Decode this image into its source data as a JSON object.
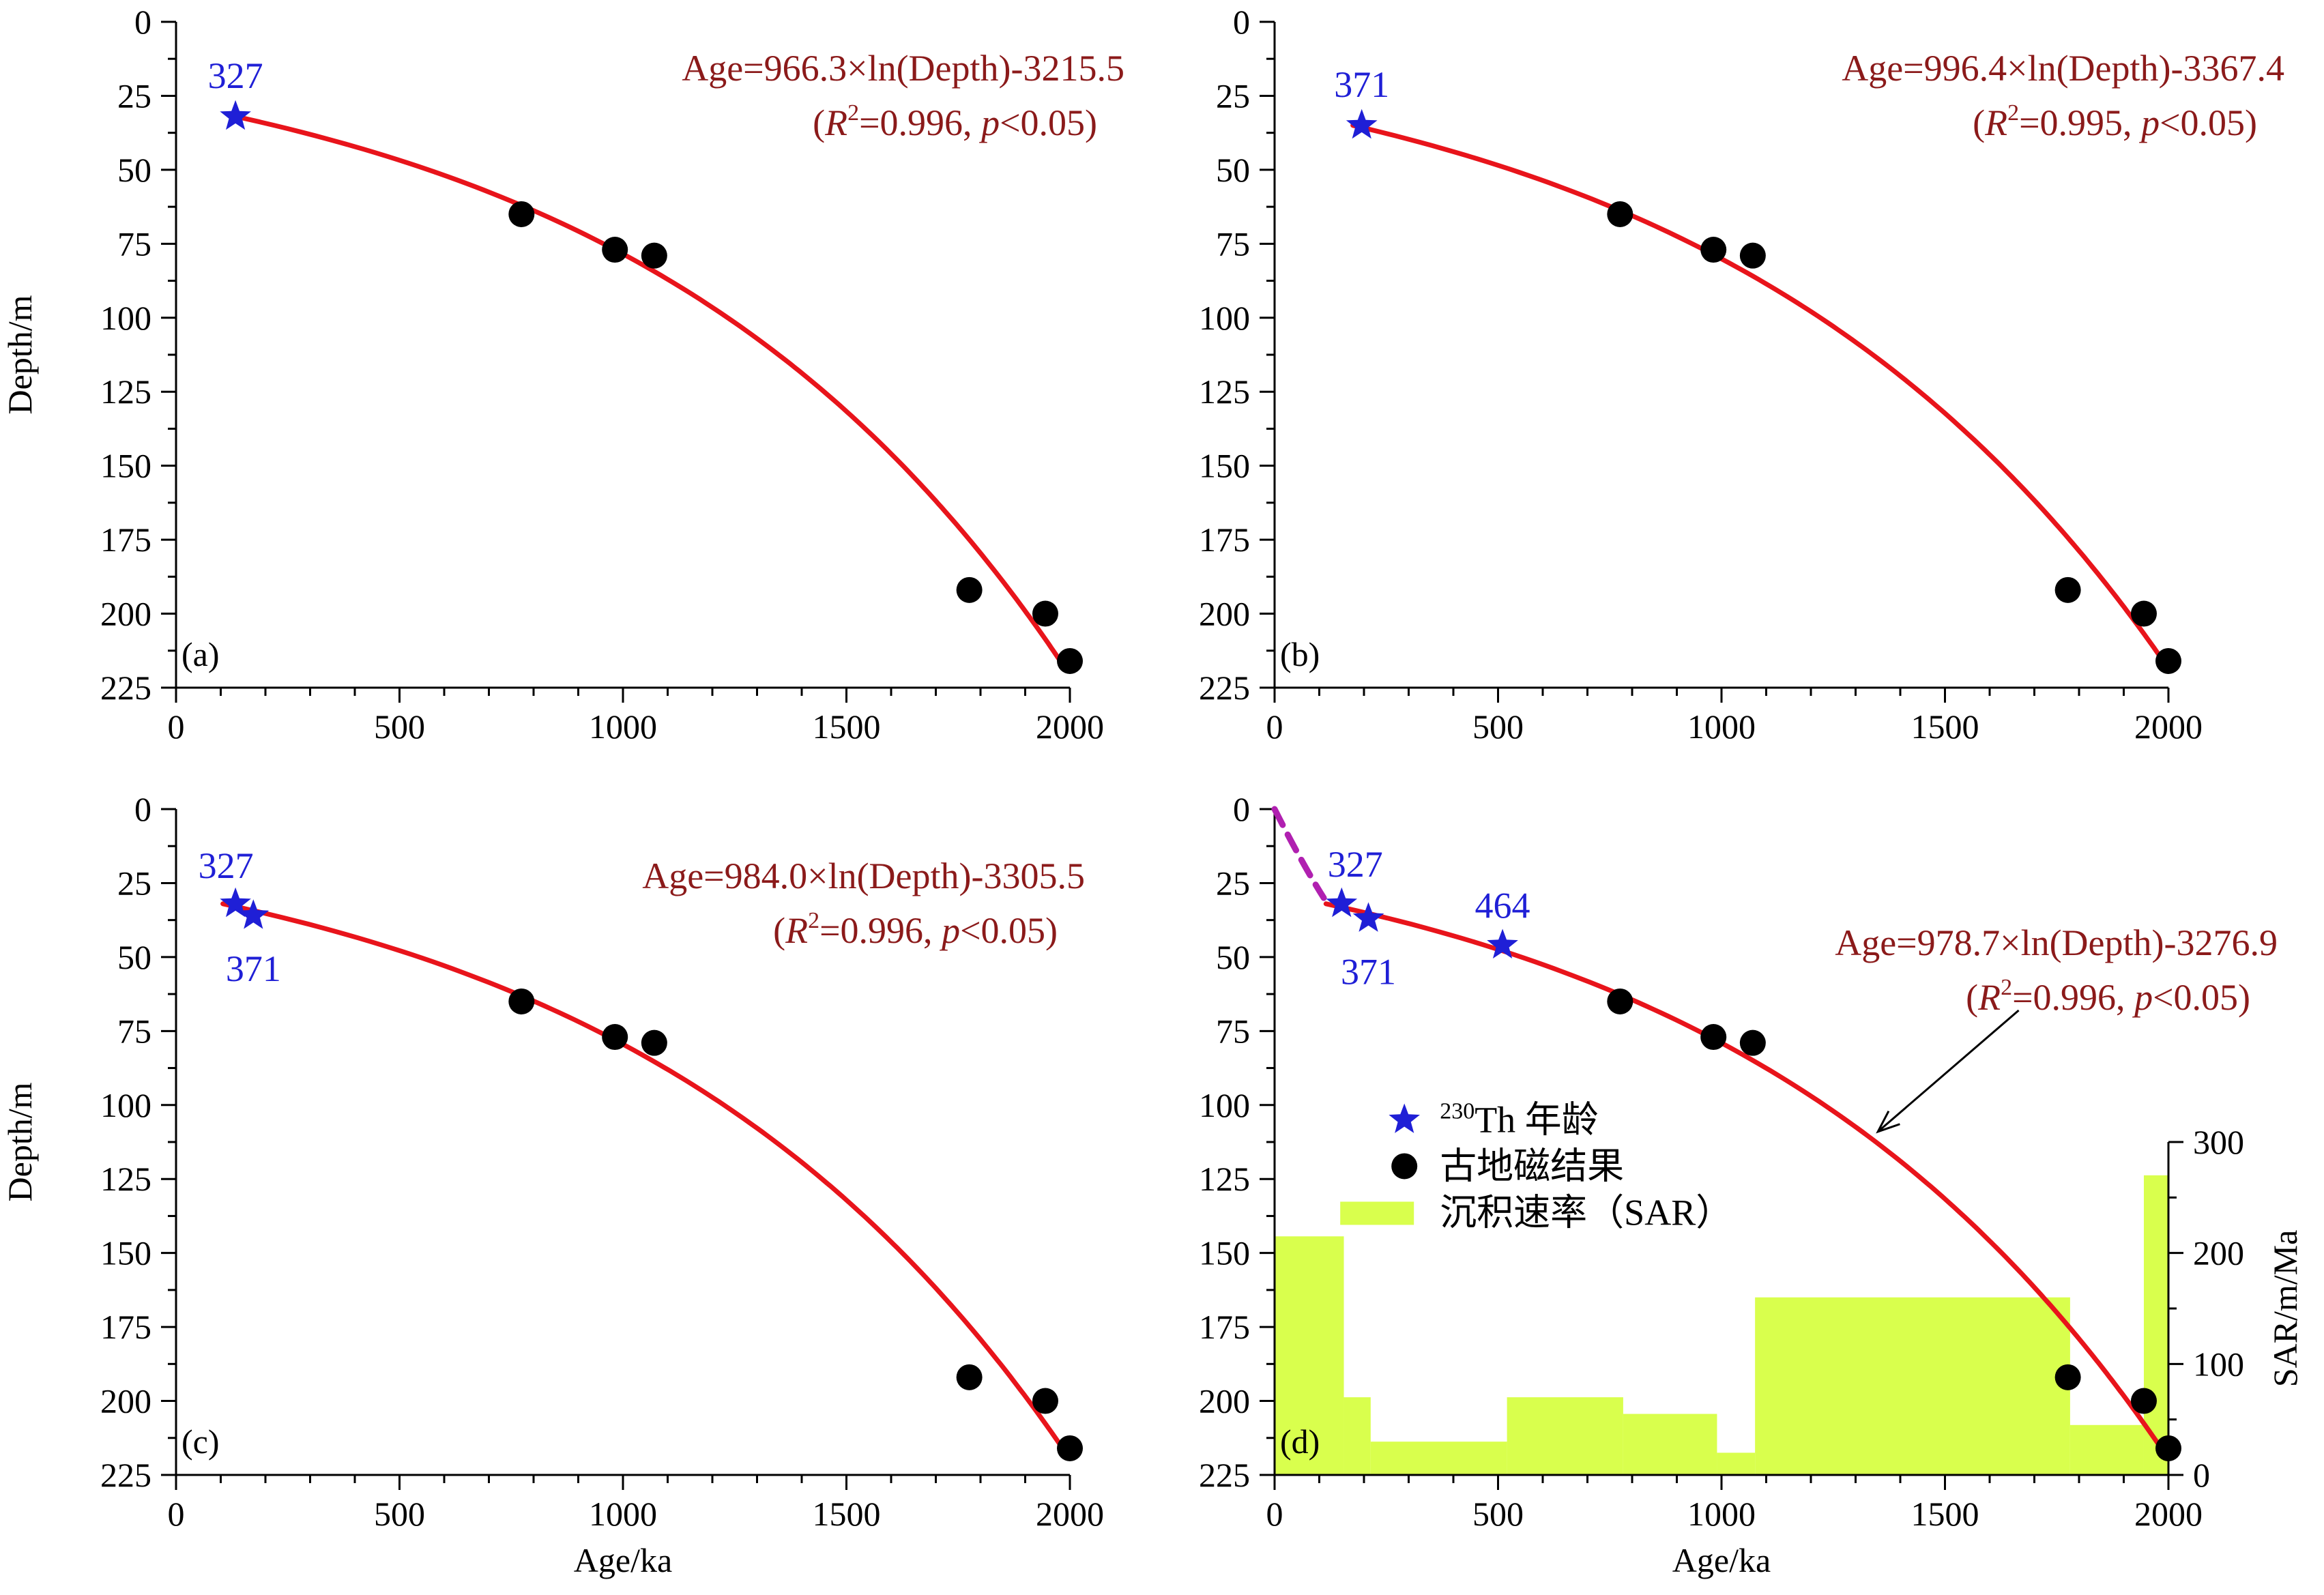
{
  "colors": {
    "fit_curve": "#e8141b",
    "equation_text": "#8b1a1a",
    "th_star": "#1f1fd6",
    "paleomag_dot": "#000000",
    "sar_fill": "#d9ff4d",
    "dashed_extension": "#b020b0"
  },
  "chart_data": [
    {
      "type": "scatter",
      "panel_label": "(a)",
      "xlabel": "",
      "ylabel": "Depth/m",
      "xlim": [
        0,
        2000
      ],
      "ylim": [
        0,
        225
      ],
      "y_inverted": true,
      "x_ticks": [
        0,
        500,
        1000,
        1500,
        2000
      ],
      "y_ticks": [
        0,
        25,
        50,
        75,
        100,
        125,
        150,
        175,
        200,
        225
      ],
      "fit": {
        "a": 966.3,
        "b": 3215.5,
        "depth_range": [
          31.5,
          216
        ]
      },
      "equation_line1": "Age=966.3×ln(Depth)-3215.5",
      "equation_line2": {
        "pre": "(",
        "r": "R",
        "sup": "2",
        "mid": "=0.996, ",
        "p": "p",
        "post": "<0.05)"
      },
      "th_ages": [
        {
          "label": "327",
          "age": 133,
          "depth": 32
        }
      ],
      "paleomag": [
        {
          "age": 773,
          "depth": 65
        },
        {
          "age": 982,
          "depth": 77
        },
        {
          "age": 1070,
          "depth": 79
        },
        {
          "age": 1775,
          "depth": 192
        },
        {
          "age": 1945,
          "depth": 200
        },
        {
          "age": 2000,
          "depth": 216
        }
      ]
    },
    {
      "type": "scatter",
      "panel_label": "(b)",
      "xlabel": "",
      "ylabel": "",
      "xlim": [
        0,
        2000
      ],
      "ylim": [
        0,
        225
      ],
      "y_inverted": true,
      "x_ticks": [
        0,
        500,
        1000,
        1500,
        2000
      ],
      "y_ticks": [
        0,
        25,
        50,
        75,
        100,
        125,
        150,
        175,
        200,
        225
      ],
      "fit": {
        "a": 996.4,
        "b": 3367.4,
        "depth_range": [
          35,
          216
        ]
      },
      "equation_line1": "Age=996.4×ln(Depth)-3367.4",
      "equation_line2": {
        "pre": "(",
        "r": "R",
        "sup": "2",
        "mid": "=0.995, ",
        "p": "p",
        "post": "<0.05)"
      },
      "th_ages": [
        {
          "label": "371",
          "age": 195,
          "depth": 35
        }
      ],
      "paleomag": [
        {
          "age": 773,
          "depth": 65
        },
        {
          "age": 982,
          "depth": 77
        },
        {
          "age": 1070,
          "depth": 79
        },
        {
          "age": 1775,
          "depth": 192
        },
        {
          "age": 1945,
          "depth": 200
        },
        {
          "age": 2000,
          "depth": 216
        }
      ]
    },
    {
      "type": "scatter",
      "panel_label": "(c)",
      "xlabel": "Age/ka",
      "ylabel": "Depth/m",
      "xlim": [
        0,
        2000
      ],
      "ylim": [
        0,
        225
      ],
      "y_inverted": true,
      "x_ticks": [
        0,
        500,
        1000,
        1500,
        2000
      ],
      "y_ticks": [
        0,
        25,
        50,
        75,
        100,
        125,
        150,
        175,
        200,
        225
      ],
      "fit": {
        "a": 984.0,
        "b": 3305.5,
        "depth_range": [
          32,
          216
        ]
      },
      "equation_line1": "Age=984.0×ln(Depth)-3305.5",
      "equation_line2": {
        "pre": "(",
        "r": "R",
        "sup": "2",
        "mid": "=0.996, ",
        "p": "p",
        "post": "<0.05)"
      },
      "th_ages": [
        {
          "label": "327",
          "age": 133,
          "depth": 32
        },
        {
          "label": "371",
          "age": 173,
          "depth": 36
        }
      ],
      "paleomag": [
        {
          "age": 773,
          "depth": 65
        },
        {
          "age": 982,
          "depth": 77
        },
        {
          "age": 1070,
          "depth": 79
        },
        {
          "age": 1775,
          "depth": 192
        },
        {
          "age": 1945,
          "depth": 200
        },
        {
          "age": 2000,
          "depth": 216
        }
      ]
    },
    {
      "type": "scatter",
      "panel_label": "(d)",
      "xlabel": "Age/ka",
      "ylabel": "",
      "xlim": [
        0,
        2000
      ],
      "ylim": [
        0,
        225
      ],
      "y_inverted": true,
      "x_ticks": [
        0,
        500,
        1000,
        1500,
        2000
      ],
      "y_ticks": [
        0,
        25,
        50,
        75,
        100,
        125,
        150,
        175,
        200,
        225
      ],
      "fit": {
        "a": 978.7,
        "b": 3276.9,
        "depth_range": [
          32,
          216
        ]
      },
      "equation_line1": "Age=978.7×ln(Depth)-3276.9",
      "equation_line2": {
        "pre": "(",
        "r": "R",
        "sup": "2",
        "mid": "=0.996, ",
        "p": "p",
        "post": "<0.05)"
      },
      "th_ages": [
        {
          "label": "327",
          "age": 150,
          "depth": 32
        },
        {
          "label": "371",
          "age": 210,
          "depth": 37
        },
        {
          "label": "464",
          "age": 510,
          "depth": 46
        }
      ],
      "paleomag": [
        {
          "age": 773,
          "depth": 65
        },
        {
          "age": 982,
          "depth": 77
        },
        {
          "age": 1070,
          "depth": 79
        },
        {
          "age": 1775,
          "depth": 192
        },
        {
          "age": 1945,
          "depth": 200
        },
        {
          "age": 2000,
          "depth": 216
        }
      ],
      "dashed_extension": [
        {
          "age": 0,
          "depth": 0
        },
        {
          "age": 110,
          "depth": 30
        }
      ],
      "annotation_arrow": {
        "from": {
          "age": 1665,
          "depth": 68
        },
        "to": {
          "age": 1350,
          "depth": 109
        }
      },
      "sar": {
        "ylabel": "SAR/m/Ma",
        "ylim": [
          0,
          300
        ],
        "y_ticks": [
          0,
          100,
          200,
          300
        ],
        "bars": [
          {
            "x0": 0,
            "x1": 155,
            "value": 215
          },
          {
            "x0": 155,
            "x1": 215,
            "value": 70
          },
          {
            "x0": 215,
            "x1": 520,
            "value": 30
          },
          {
            "x0": 520,
            "x1": 780,
            "value": 70
          },
          {
            "x0": 780,
            "x1": 990,
            "value": 55
          },
          {
            "x0": 990,
            "x1": 1075,
            "value": 20
          },
          {
            "x0": 1075,
            "x1": 1780,
            "value": 160
          },
          {
            "x0": 1780,
            "x1": 1945,
            "value": 45
          },
          {
            "x0": 1945,
            "x1": 2000,
            "value": 270
          }
        ]
      },
      "legend": [
        {
          "kind": "star",
          "sup": "230",
          "text": "Th 年龄"
        },
        {
          "kind": "dot",
          "text": "古地磁结果"
        },
        {
          "kind": "rect",
          "text": "沉积速率（SAR）"
        }
      ]
    }
  ]
}
